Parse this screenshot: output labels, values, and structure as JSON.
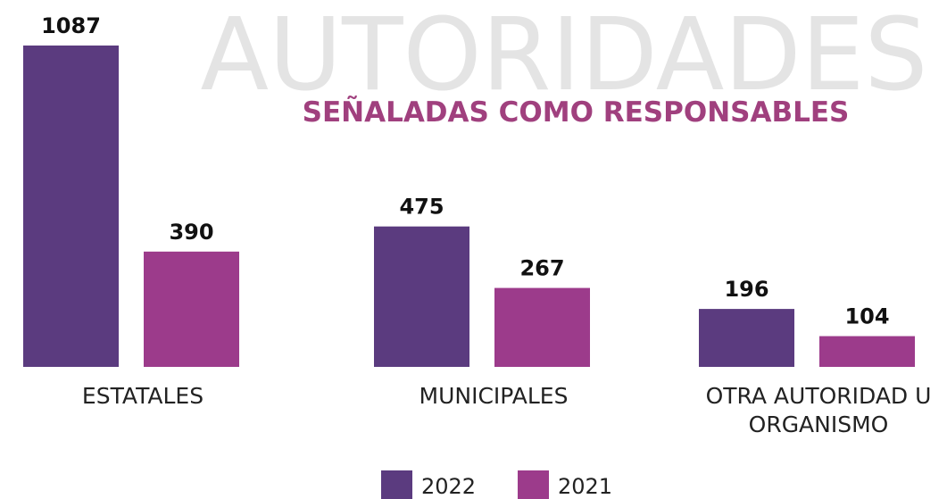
{
  "chart_data": {
    "type": "bar",
    "title": "AUTORIDADES",
    "subtitle": "SEÑALADAS COMO RESPONSABLES",
    "categories": [
      "ESTATALES",
      "MUNICIPALES",
      "OTRA AUTORIDAD U ORGANISMO"
    ],
    "series": [
      {
        "name": "2022",
        "color": "#5b3b7f",
        "values": [
          1087,
          475,
          196
        ]
      },
      {
        "name": "2021",
        "color": "#9c3b8b",
        "values": [
          390,
          267,
          104
        ]
      }
    ]
  }
}
